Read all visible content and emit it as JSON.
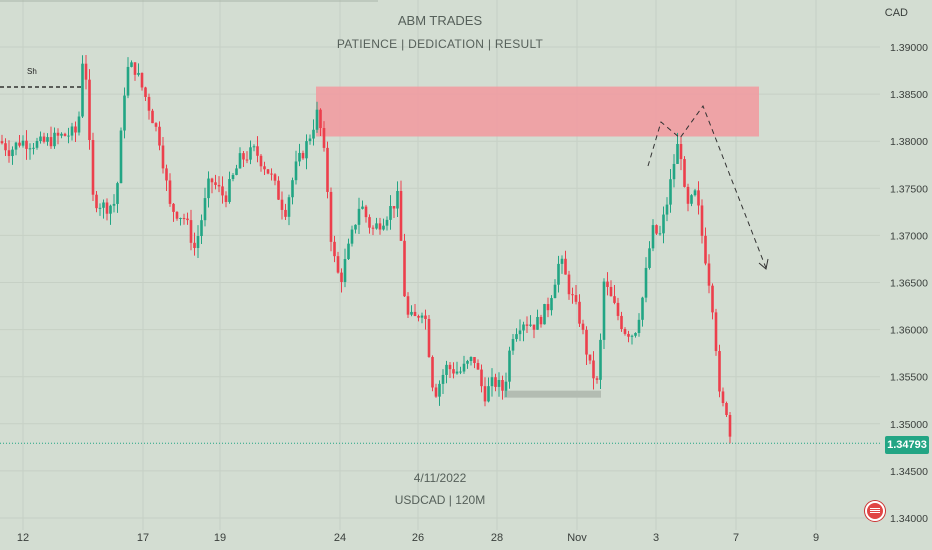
{
  "watermark": {
    "title": "ABM TRADES",
    "subtitle": "PATIENCE   |   DEDICATION  |   RESULT",
    "date": "4/11/2022",
    "symbol": "USDCAD  |  120M"
  },
  "annotations": {
    "swing_label": "Sh"
  },
  "chart_data": {
    "type": "candlestick",
    "currency_label": "CAD",
    "y_ticks": [
      "1.39000",
      "1.38500",
      "1.38000",
      "1.37500",
      "1.37000",
      "1.36500",
      "1.36000",
      "1.35500",
      "1.35000",
      "1.34500",
      "1.34000"
    ],
    "y_tick_values": [
      1.39,
      1.385,
      1.38,
      1.375,
      1.37,
      1.365,
      1.36,
      1.355,
      1.35,
      1.345,
      1.34
    ],
    "ylim": [
      1.34,
      1.3925
    ],
    "x_ticks": [
      "12",
      "17",
      "19",
      "24",
      "26",
      "28",
      "Nov",
      "3",
      "7",
      "9"
    ],
    "last_price": "1.34793",
    "last_price_value": 1.34793,
    "supply_zone": {
      "low": 1.3805,
      "high": 1.3858
    },
    "demand_level": {
      "low": 1.3528,
      "high": 1.3532
    },
    "colors": {
      "background": "#d3ddd2",
      "up": "#22a584",
      "down": "#ec3f4c",
      "zone": "#f2999f",
      "grid": "#c6d0c5",
      "last_price": "#22a584"
    },
    "up_color": "#22a584",
    "down_color": "#ec3f4c"
  }
}
